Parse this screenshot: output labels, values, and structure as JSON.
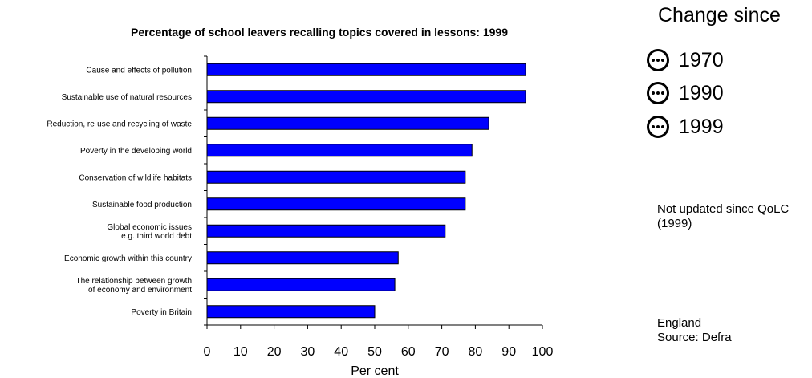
{
  "chart_data": {
    "type": "bar",
    "orientation": "horizontal",
    "title": "Percentage of school leavers recalling topics covered in lessons: 1999",
    "xlabel": "Per cent",
    "ylabel": "",
    "xlim": [
      0,
      100
    ],
    "x_ticks": [
      "0",
      "10",
      "20",
      "30",
      "40",
      "50",
      "60",
      "70",
      "80",
      "90",
      "100"
    ],
    "grid": false,
    "bar_color": "#0000ff",
    "categories": [
      [
        "Cause and effects of pollution"
      ],
      [
        "Sustainable use of natural resources"
      ],
      [
        "Reduction, re-use and recycling of waste"
      ],
      [
        "Poverty in the developing world"
      ],
      [
        "Conservation of wildlife habitats"
      ],
      [
        "Sustainable food production"
      ],
      [
        "Global economic issues",
        "e.g. third world debt"
      ],
      [
        "Economic growth within this country"
      ],
      [
        "The relationship between growth",
        "of economy and environment"
      ],
      [
        "Poverty in Britain"
      ]
    ],
    "values": [
      95,
      95,
      84,
      79,
      77,
      77,
      71,
      57,
      56,
      50
    ]
  },
  "legend": {
    "title": "Change since",
    "items": [
      {
        "icon": "neutral-dots-icon",
        "label": "1970"
      },
      {
        "icon": "neutral-dots-icon",
        "label": "1990"
      },
      {
        "icon": "neutral-dots-icon",
        "label": "1999"
      }
    ]
  },
  "notes": {
    "update_status": "Not updated since QoLC (1999)",
    "region": "England",
    "source": "Source: Defra"
  }
}
